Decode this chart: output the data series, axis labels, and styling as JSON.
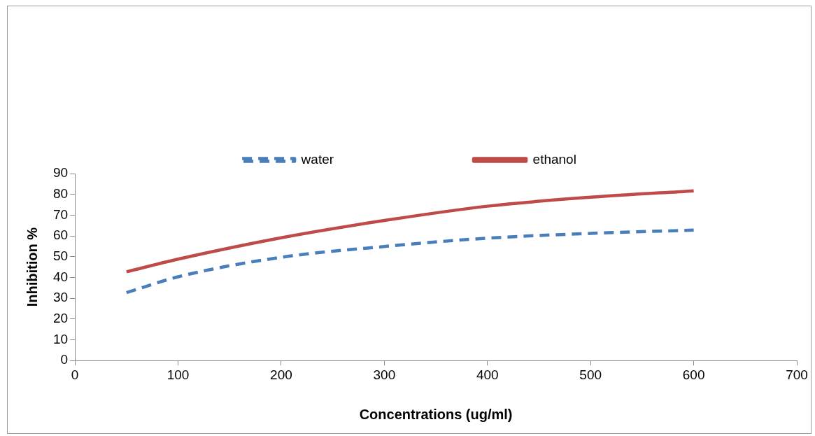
{
  "chart_data": {
    "type": "line",
    "xlabel": "Concentrations (ug/ml)",
    "ylabel": "Inhibition %",
    "x": [
      50,
      100,
      200,
      300,
      400,
      500,
      600
    ],
    "series": [
      {
        "name": "water",
        "color": "#4a7ebb",
        "line_style": "dashed",
        "values": [
          32.7,
          40.3,
          49.7,
          54.9,
          58.9,
          61.2,
          62.8
        ]
      },
      {
        "name": "ethanol",
        "color": "#be4b48",
        "line_style": "solid",
        "values": [
          42.7,
          48.8,
          59.1,
          67.4,
          74.3,
          78.6,
          81.7
        ]
      }
    ],
    "xlim": [
      0,
      700
    ],
    "xticks": [
      0,
      100,
      200,
      300,
      400,
      500,
      600,
      700
    ],
    "ylim": [
      0,
      90
    ],
    "yticks": [
      0,
      10,
      20,
      30,
      40,
      50,
      60,
      70,
      80,
      90
    ],
    "grid": false,
    "legend": "top",
    "marker": "none"
  }
}
